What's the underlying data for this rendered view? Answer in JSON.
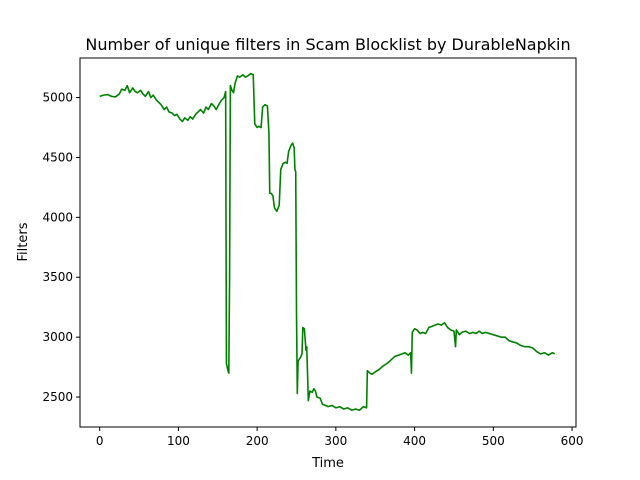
{
  "chart_data": {
    "type": "line",
    "title": "Number of unique filters in Scam Blocklist by DurableNapkin",
    "xlabel": "Time",
    "ylabel": "Filters",
    "xlim": [
      -25,
      605
    ],
    "ylim": [
      2250,
      5330
    ],
    "grid": false,
    "x_ticks": [
      0,
      100,
      200,
      300,
      400,
      500,
      600
    ],
    "y_ticks": [
      2500,
      3000,
      3500,
      4000,
      4500,
      5000
    ],
    "series": [
      {
        "color": "#008000",
        "points": [
          [
            0,
            5010
          ],
          [
            5,
            5020
          ],
          [
            10,
            5025
          ],
          [
            15,
            5010
          ],
          [
            20,
            5005
          ],
          [
            25,
            5030
          ],
          [
            28,
            5070
          ],
          [
            32,
            5060
          ],
          [
            35,
            5100
          ],
          [
            38,
            5040
          ],
          [
            42,
            5080
          ],
          [
            45,
            5050
          ],
          [
            48,
            5040
          ],
          [
            52,
            5060
          ],
          [
            55,
            5030
          ],
          [
            58,
            5010
          ],
          [
            62,
            5050
          ],
          [
            65,
            5000
          ],
          [
            68,
            5020
          ],
          [
            72,
            4980
          ],
          [
            75,
            4960
          ],
          [
            78,
            4940
          ],
          [
            82,
            4900
          ],
          [
            85,
            4920
          ],
          [
            88,
            4880
          ],
          [
            92,
            4870
          ],
          [
            95,
            4850
          ],
          [
            98,
            4860
          ],
          [
            102,
            4820
          ],
          [
            105,
            4800
          ],
          [
            108,
            4830
          ],
          [
            112,
            4810
          ],
          [
            115,
            4840
          ],
          [
            118,
            4820
          ],
          [
            122,
            4860
          ],
          [
            125,
            4880
          ],
          [
            128,
            4900
          ],
          [
            132,
            4870
          ],
          [
            135,
            4920
          ],
          [
            138,
            4900
          ],
          [
            142,
            4950
          ],
          [
            145,
            4930
          ],
          [
            148,
            4900
          ],
          [
            152,
            4950
          ],
          [
            155,
            4980
          ],
          [
            158,
            5000
          ],
          [
            160,
            5050
          ],
          [
            161,
            2780
          ],
          [
            163,
            2720
          ],
          [
            164,
            2700
          ],
          [
            165,
            3500
          ],
          [
            166,
            5100
          ],
          [
            168,
            5060
          ],
          [
            170,
            5040
          ],
          [
            172,
            5120
          ],
          [
            175,
            5180
          ],
          [
            178,
            5170
          ],
          [
            182,
            5190
          ],
          [
            185,
            5170
          ],
          [
            188,
            5180
          ],
          [
            192,
            5200
          ],
          [
            195,
            5190
          ],
          [
            197,
            4780
          ],
          [
            200,
            4750
          ],
          [
            202,
            4760
          ],
          [
            205,
            4750
          ],
          [
            207,
            4920
          ],
          [
            210,
            4940
          ],
          [
            213,
            4930
          ],
          [
            215,
            4700
          ],
          [
            216,
            4200
          ],
          [
            218,
            4200
          ],
          [
            220,
            4180
          ],
          [
            222,
            4080
          ],
          [
            225,
            4050
          ],
          [
            228,
            4100
          ],
          [
            230,
            4400
          ],
          [
            233,
            4450
          ],
          [
            236,
            4460
          ],
          [
            238,
            4450
          ],
          [
            240,
            4550
          ],
          [
            243,
            4600
          ],
          [
            245,
            4620
          ],
          [
            247,
            4580
          ],
          [
            248,
            4400
          ],
          [
            249,
            4380
          ],
          [
            250,
            3200
          ],
          [
            251,
            2530
          ],
          [
            252,
            2800
          ],
          [
            255,
            2830
          ],
          [
            257,
            2860
          ],
          [
            258,
            3080
          ],
          [
            260,
            3070
          ],
          [
            262,
            2890
          ],
          [
            263,
            2920
          ],
          [
            265,
            2470
          ],
          [
            267,
            2550
          ],
          [
            270,
            2540
          ],
          [
            272,
            2570
          ],
          [
            274,
            2550
          ],
          [
            276,
            2500
          ],
          [
            280,
            2490
          ],
          [
            283,
            2440
          ],
          [
            287,
            2430
          ],
          [
            290,
            2420
          ],
          [
            295,
            2430
          ],
          [
            300,
            2410
          ],
          [
            305,
            2420
          ],
          [
            310,
            2400
          ],
          [
            315,
            2410
          ],
          [
            320,
            2390
          ],
          [
            325,
            2400
          ],
          [
            330,
            2390
          ],
          [
            335,
            2420
          ],
          [
            339,
            2410
          ],
          [
            340,
            2720
          ],
          [
            343,
            2700
          ],
          [
            346,
            2690
          ],
          [
            350,
            2710
          ],
          [
            355,
            2730
          ],
          [
            360,
            2760
          ],
          [
            365,
            2780
          ],
          [
            370,
            2810
          ],
          [
            375,
            2840
          ],
          [
            380,
            2850
          ],
          [
            384,
            2860
          ],
          [
            388,
            2870
          ],
          [
            392,
            2850
          ],
          [
            395,
            2870
          ],
          [
            396,
            2700
          ],
          [
            397,
            3040
          ],
          [
            400,
            3070
          ],
          [
            403,
            3060
          ],
          [
            407,
            3030
          ],
          [
            410,
            3040
          ],
          [
            414,
            3030
          ],
          [
            418,
            3080
          ],
          [
            422,
            3090
          ],
          [
            426,
            3100
          ],
          [
            430,
            3110
          ],
          [
            434,
            3100
          ],
          [
            438,
            3120
          ],
          [
            442,
            3080
          ],
          [
            446,
            3060
          ],
          [
            450,
            3050
          ],
          [
            452,
            2920
          ],
          [
            453,
            3060
          ],
          [
            457,
            3020
          ],
          [
            460,
            3040
          ],
          [
            465,
            3050
          ],
          [
            470,
            3030
          ],
          [
            474,
            3040
          ],
          [
            478,
            3030
          ],
          [
            482,
            3050
          ],
          [
            486,
            3030
          ],
          [
            490,
            3040
          ],
          [
            495,
            3030
          ],
          [
            500,
            3020
          ],
          [
            505,
            3010
          ],
          [
            510,
            3000
          ],
          [
            515,
            3000
          ],
          [
            520,
            2970
          ],
          [
            525,
            2960
          ],
          [
            530,
            2950
          ],
          [
            535,
            2930
          ],
          [
            540,
            2920
          ],
          [
            545,
            2920
          ],
          [
            550,
            2910
          ],
          [
            555,
            2880
          ],
          [
            560,
            2860
          ],
          [
            565,
            2870
          ],
          [
            570,
            2850
          ],
          [
            575,
            2870
          ],
          [
            578,
            2860
          ]
        ]
      }
    ]
  }
}
